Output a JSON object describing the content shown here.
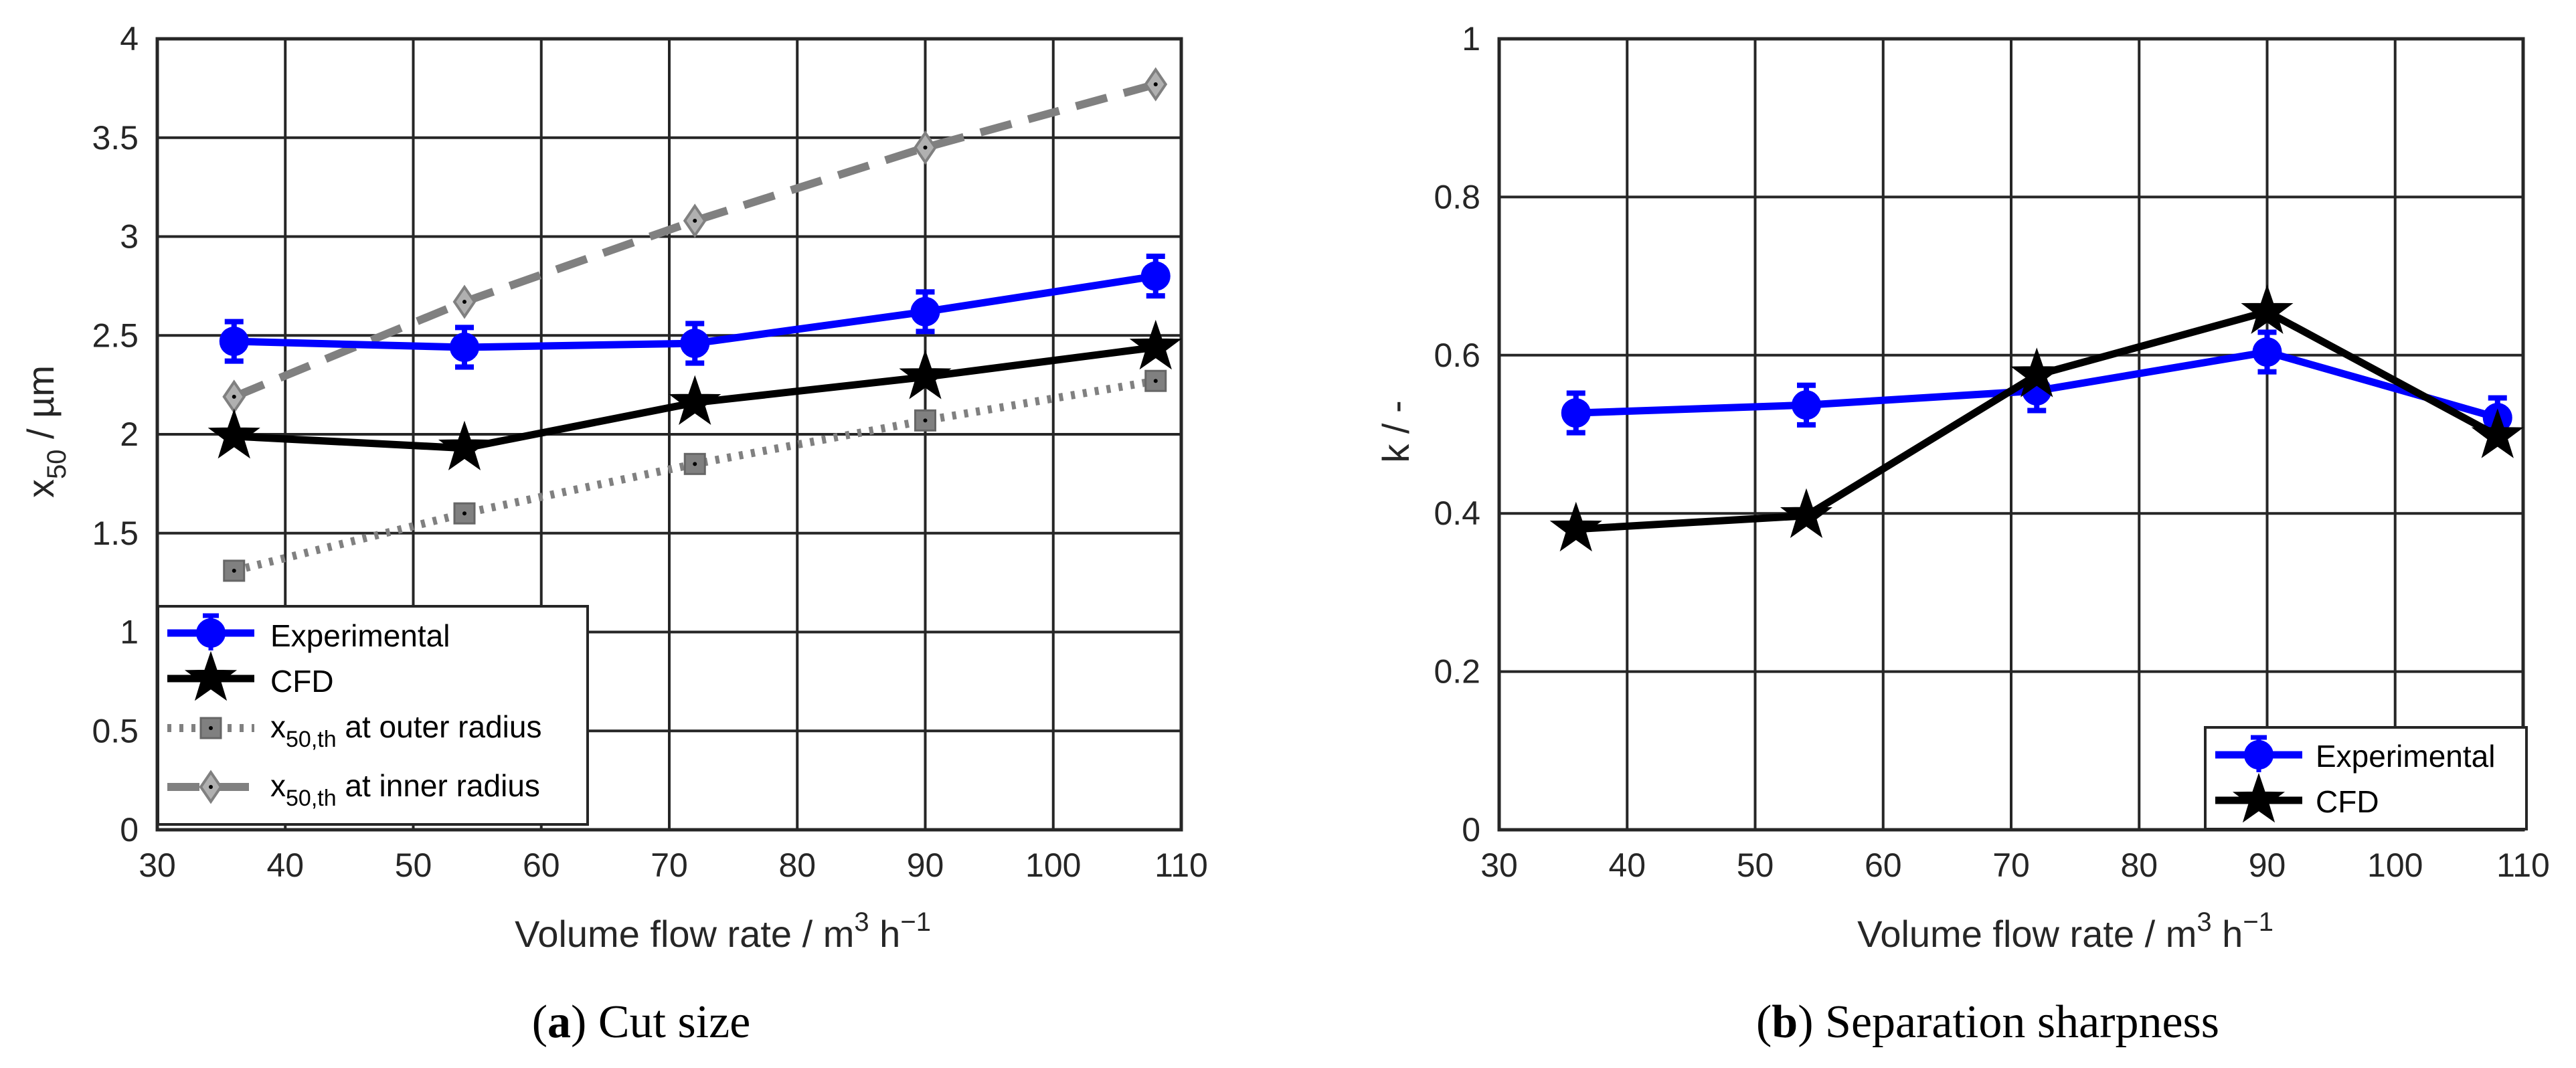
{
  "chart_data": [
    {
      "type": "line",
      "panel": "a",
      "caption_label": "a",
      "caption_text": " Cut size",
      "xlabel": "Volume flow rate / m",
      "xlabel_sup": "3",
      "xlabel_tail": " h",
      "xlabel_tail_sup": "−1",
      "ylabel_main": "x",
      "ylabel_sub": "50",
      "ylabel_tail": " / µm",
      "xlim": [
        30,
        110
      ],
      "ylim": [
        0,
        4
      ],
      "xticks": [
        "30",
        "40",
        "50",
        "60",
        "70",
        "80",
        "90",
        "100",
        "110"
      ],
      "yticks": [
        "0",
        "0.5",
        "1",
        "1.5",
        "2",
        "2.5",
        "3",
        "3.5",
        "4"
      ],
      "grid": true,
      "legend_position": "bottom-left",
      "x": [
        36,
        54,
        72,
        90,
        108
      ],
      "series": [
        {
          "name": "Experimental",
          "values": [
            2.47,
            2.44,
            2.46,
            2.62,
            2.8
          ],
          "errors": [
            0.1,
            0.1,
            0.1,
            0.1,
            0.1
          ],
          "color": "#0000ff",
          "style": "solid",
          "marker": "circle"
        },
        {
          "name": "CFD",
          "values": [
            1.99,
            1.93,
            2.16,
            2.29,
            2.44
          ],
          "color": "#000000",
          "style": "solid",
          "marker": "star"
        },
        {
          "name": "x_50,th at outer radius",
          "legend_main": "x",
          "legend_sub": "50,th",
          "legend_tail": " at outer radius",
          "values": [
            1.31,
            1.6,
            1.85,
            2.07,
            2.27
          ],
          "color": "#808080",
          "style": "dotted",
          "marker": "square"
        },
        {
          "name": "x_50,th at inner radius",
          "legend_main": "x",
          "legend_sub": "50,th",
          "legend_tail": " at inner radius",
          "values": [
            2.19,
            2.67,
            3.08,
            3.45,
            3.77
          ],
          "color": "#808080",
          "style": "dashed",
          "marker": "diamond"
        }
      ]
    },
    {
      "type": "line",
      "panel": "b",
      "caption_label": "b",
      "caption_text": " Separation sharpness",
      "xlabel": "Volume flow rate / m",
      "xlabel_sup": "3",
      "xlabel_tail": " h",
      "xlabel_tail_sup": "−1",
      "ylabel_main": "k / -",
      "xlim": [
        30,
        110
      ],
      "ylim": [
        0,
        1
      ],
      "xticks": [
        "30",
        "40",
        "50",
        "60",
        "70",
        "80",
        "90",
        "100",
        "110"
      ],
      "yticks": [
        "0",
        "0.2",
        "0.4",
        "0.6",
        "0.8",
        "1"
      ],
      "grid": true,
      "legend_position": "bottom-right",
      "x": [
        36,
        54,
        72,
        90,
        108
      ],
      "series": [
        {
          "name": "Experimental",
          "values": [
            0.527,
            0.537,
            0.555,
            0.604,
            0.521
          ],
          "errors": [
            0.025,
            0.025,
            0.025,
            0.025,
            0.025
          ],
          "color": "#0000ff",
          "style": "solid",
          "marker": "circle"
        },
        {
          "name": "CFD",
          "values": [
            0.38,
            0.397,
            0.575,
            0.655,
            0.498
          ],
          "color": "#000000",
          "style": "solid",
          "marker": "star"
        }
      ]
    }
  ]
}
